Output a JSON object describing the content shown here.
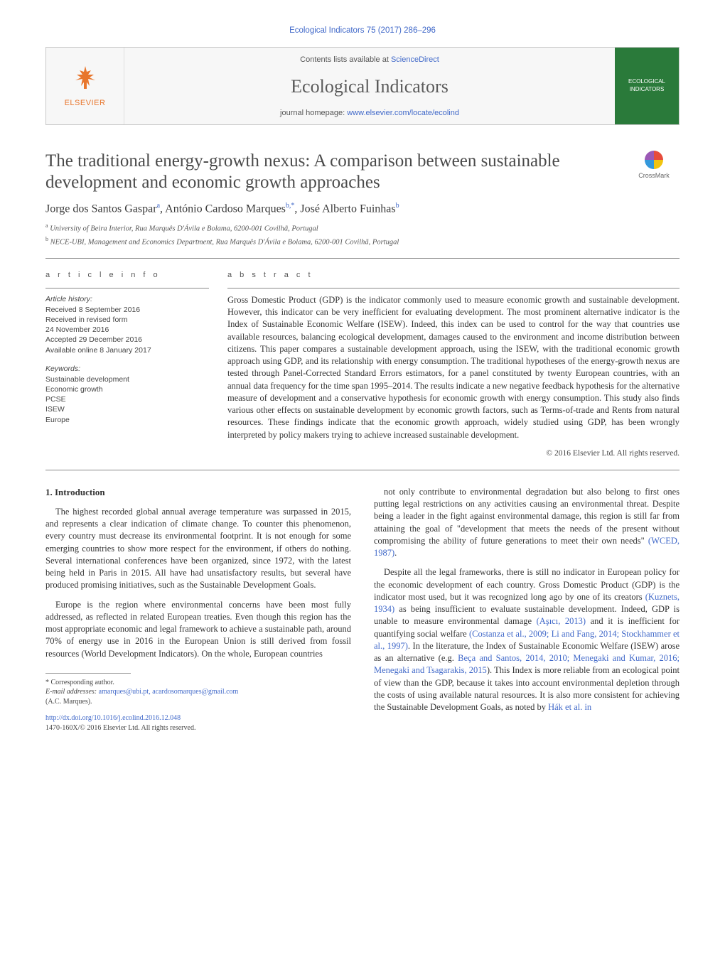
{
  "header": {
    "citation": "Ecological Indicators 75 (2017) 286–296",
    "contents_prefix": "Contents lists available at ",
    "contents_link": "ScienceDirect",
    "journal_name": "Ecological Indicators",
    "homepage_prefix": "journal homepage: ",
    "homepage_link": "www.elsevier.com/locate/ecolind",
    "publisher": "ELSEVIER",
    "cover_label": "ECOLOGICAL INDICATORS"
  },
  "title_block": {
    "title": "The traditional energy-growth nexus: A comparison between sustainable development and economic growth approaches",
    "crossmark_label": "CrossMark"
  },
  "authors": {
    "list_html": "Jorge dos Santos Gaspar<sup>a</sup>, António Cardoso Marques<sup>b,*</sup>, José Alberto Fuinhas<sup>b</sup>",
    "affiliations": [
      {
        "sup": "a",
        "text": "University of Beira Interior, Rua Marquês D'Ávila e Bolama, 6200-001 Covilhã, Portugal"
      },
      {
        "sup": "b",
        "text": "NECE-UBI, Management and Economics Department, Rua Marquês D'Ávila e Bolama, 6200-001 Covilhã, Portugal"
      }
    ]
  },
  "article_info": {
    "label": "a r t i c l e   i n f o",
    "history_head": "Article history:",
    "history": [
      "Received 8 September 2016",
      "Received in revised form",
      "24 November 2016",
      "Accepted 29 December 2016",
      "Available online 8 January 2017"
    ],
    "keywords_head": "Keywords:",
    "keywords": [
      "Sustainable development",
      "Economic growth",
      "PCSE",
      "ISEW",
      "Europe"
    ]
  },
  "abstract": {
    "label": "a b s t r a c t",
    "text": "Gross Domestic Product (GDP) is the indicator commonly used to measure economic growth and sustainable development. However, this indicator can be very inefficient for evaluating development. The most prominent alternative indicator is the Index of Sustainable Economic Welfare (ISEW). Indeed, this index can be used to control for the way that countries use available resources, balancing ecological development, damages caused to the environment and income distribution between citizens. This paper compares a sustainable development approach, using the ISEW, with the traditional economic growth approach using GDP, and its relationship with energy consumption. The traditional hypotheses of the energy-growth nexus are tested through Panel-Corrected Standard Errors estimators, for a panel constituted by twenty European countries, with an annual data frequency for the time span 1995–2014. The results indicate a new negative feedback hypothesis for the alternative measure of development and a conservative hypothesis for economic growth with energy consumption. This study also finds various other effects on sustainable development by economic growth factors, such as Terms-of-trade and Rents from natural resources. These findings indicate that the economic growth approach, widely studied using GDP, has been wrongly interpreted by policy makers trying to achieve increased sustainable development.",
    "copyright": "© 2016 Elsevier Ltd. All rights reserved."
  },
  "body": {
    "heading": "1. Introduction",
    "col1": [
      "The highest recorded global annual average temperature was surpassed in 2015, and represents a clear indication of climate change. To counter this phenomenon, every country must decrease its environmental footprint. It is not enough for some emerging countries to show more respect for the environment, if others do nothing. Several international conferences have been organized, since 1972, with the latest being held in Paris in 2015. All have had unsatisfactory results, but several have produced promising initiatives, such as the Sustainable Development Goals.",
      "Europe is the region where environmental concerns have been most fully addressed, as reflected in related European treaties. Even though this region has the most appropriate economic and legal framework to achieve a sustainable path, around 70% of energy use in 2016 in the European Union is still derived from fossil resources (World Development Indicators). On the whole, European countries"
    ],
    "col2": [
      "not only contribute to environmental degradation but also belong to first ones putting legal restrictions on any activities causing an environmental threat. Despite being a leader in the fight against environmental damage, this region is still far from attaining the goal of \"development that meets the needs of the present without compromising the ability of future generations to meet their own needs\" <span class=\"ref-link\">(WCED, 1987)</span>.",
      "Despite all the legal frameworks, there is still no indicator in European policy for the economic development of each country. Gross Domestic Product (GDP) is the indicator most used, but it was recognized long ago by one of its creators <span class=\"ref-link\">(Kuznets, 1934)</span> as being insufficient to evaluate sustainable development. Indeed, GDP is unable to measure environmental damage <span class=\"ref-link\">(Aşıcı, 2013)</span> and it is inefficient for quantifying social welfare <span class=\"ref-link\">(Costanza et al., 2009; Li and Fang, 2014; Stockhammer et al., 1997)</span>. In the literature, the Index of Sustainable Economic Welfare (ISEW) arose as an alternative (e.g. <span class=\"ref-link\">Beça and Santos, 2014, 2010; Menegaki and Kumar, 2016; Menegaki and Tsagarakis, 2015</span>). This Index is more reliable from an ecological point of view than the GDP, because it takes into account environmental depletion through the costs of using available natural resources. It is also more consistent for achieving the Sustainable Development Goals, as noted by <span class=\"ref-link\">Hák et al. in</span>"
    ]
  },
  "footnote": {
    "corr": "* Corresponding author.",
    "email_label": "E-mail addresses: ",
    "emails": "amarques@ubi.pt, acardosomarques@gmail.com",
    "email_owner": "(A.C. Marques)."
  },
  "doi": {
    "link": "http://dx.doi.org/10.1016/j.ecolind.2016.12.048",
    "issn_copy": "1470-160X/© 2016 Elsevier Ltd. All rights reserved."
  },
  "colors": {
    "link": "#4169c9",
    "elsevier": "#e8762d",
    "text": "#333333",
    "rule": "#888888",
    "cover_bg": "#2a7a3a"
  },
  "fonts": {
    "body_family": "Times New Roman, Georgia, serif",
    "sans_family": "Arial, sans-serif",
    "title_size_pt": 18,
    "journal_size_pt": 20,
    "body_size_pt": 9,
    "info_size_pt": 8
  }
}
